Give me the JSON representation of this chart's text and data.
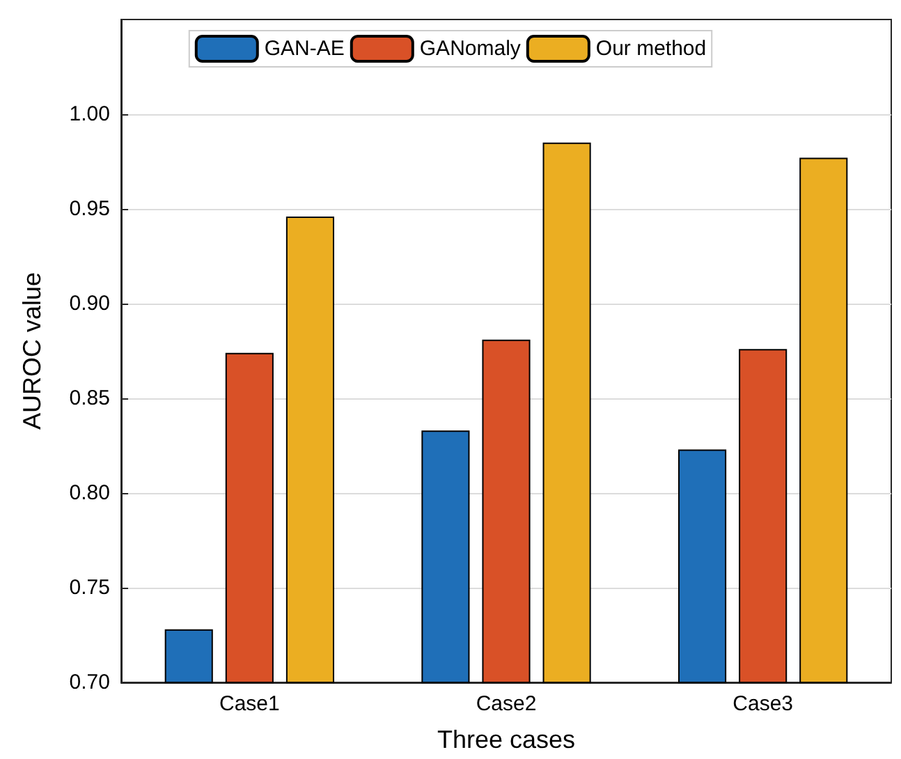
{
  "chart_data": {
    "type": "bar",
    "xlabel": "Three cases",
    "ylabel": "AUROC value",
    "categories": [
      "Case1",
      "Case2",
      "Case3"
    ],
    "series": [
      {
        "name": "GAN-AE",
        "color": "#1f6fb8",
        "values": [
          0.728,
          0.833,
          0.823
        ]
      },
      {
        "name": "GANomaly",
        "color": "#d95127",
        "values": [
          0.874,
          0.881,
          0.876
        ]
      },
      {
        "name": "Our method",
        "color": "#ebae22",
        "values": [
          0.946,
          0.985,
          0.977
        ]
      }
    ],
    "ylim": [
      0.7,
      1.05
    ],
    "yticks": [
      {
        "value": 0.7,
        "label": "0.70"
      },
      0.75,
      {
        "value": 0.8,
        "label": "0.80"
      },
      0.85,
      {
        "value": 0.9,
        "label": "0.90"
      },
      0.95,
      {
        "value": 1.0,
        "label": "1.00"
      }
    ],
    "grid": "y",
    "legend": "top"
  }
}
